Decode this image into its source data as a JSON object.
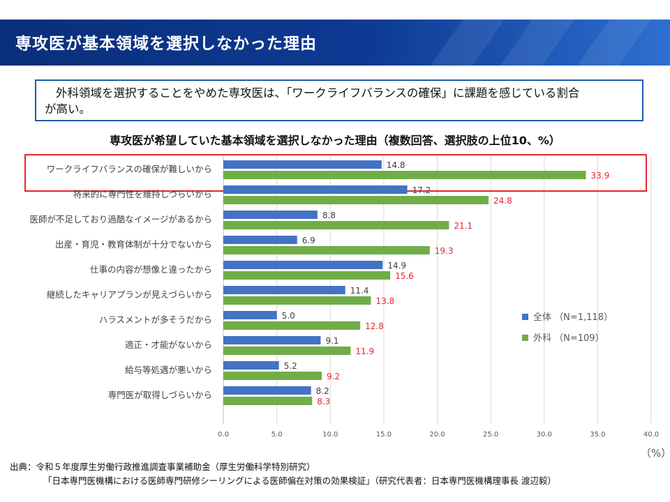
{
  "header": {
    "title": "専攻医が基本領域を選択しなかった理由"
  },
  "callout": {
    "line1": "外科領域を選択することをやめた専攻医は、「ワークライフバランスの確保」に課題を感じている割合",
    "line2": "が高い。"
  },
  "chart_title": "専攻医が希望していた基本領域を選択しなかった理由（複数回答、選択肢の上位10、%）",
  "colors": {
    "overall": "#4472c4",
    "surgery": "#70ad47",
    "highlight": "#e8242a",
    "header": "#0d3a93"
  },
  "chart_data": {
    "type": "bar",
    "orientation": "horizontal",
    "categories": [
      "ワークライフバランスの確保が難しいから",
      "将来的に専門性を維持しづらいから",
      "医師が不足しており過酷なイメージがあるから",
      "出産・育児・教育体制が十分でないから",
      "仕事の内容が想像と違ったから",
      "継続したキャリアプランが見えづらいから",
      "ハラスメントが多そうだから",
      "適正・才能がないから",
      "給与等処遇が悪いから",
      "専門医が取得しづらいから"
    ],
    "series": [
      {
        "name": "全体 （N=1,118）",
        "values": [
          14.8,
          17.2,
          8.8,
          6.9,
          14.9,
          11.4,
          5.0,
          9.1,
          5.2,
          8.2
        ]
      },
      {
        "name": "外科 （N=109）",
        "values": [
          33.9,
          24.8,
          21.1,
          19.3,
          15.6,
          13.8,
          12.8,
          11.9,
          9.2,
          8.3
        ]
      }
    ],
    "xlim": [
      0,
      40
    ],
    "xticks": [
      "0.0",
      "5.0",
      "10.0",
      "15.0",
      "20.0",
      "25.0",
      "30.0",
      "35.0",
      "40.0"
    ],
    "unit_label": "（%）",
    "highlighted_category": 0,
    "legend": "right"
  },
  "source": {
    "line1": "出典：令和５年度厚生労働行政推進調査事業補助金（厚生労働科学特別研究）",
    "line2": "「日本専門医機構における医師専門研修シーリングによる医師偏在対策の効果検証」（研究代表者：日本専門医機構理事長 渡辺毅）"
  }
}
